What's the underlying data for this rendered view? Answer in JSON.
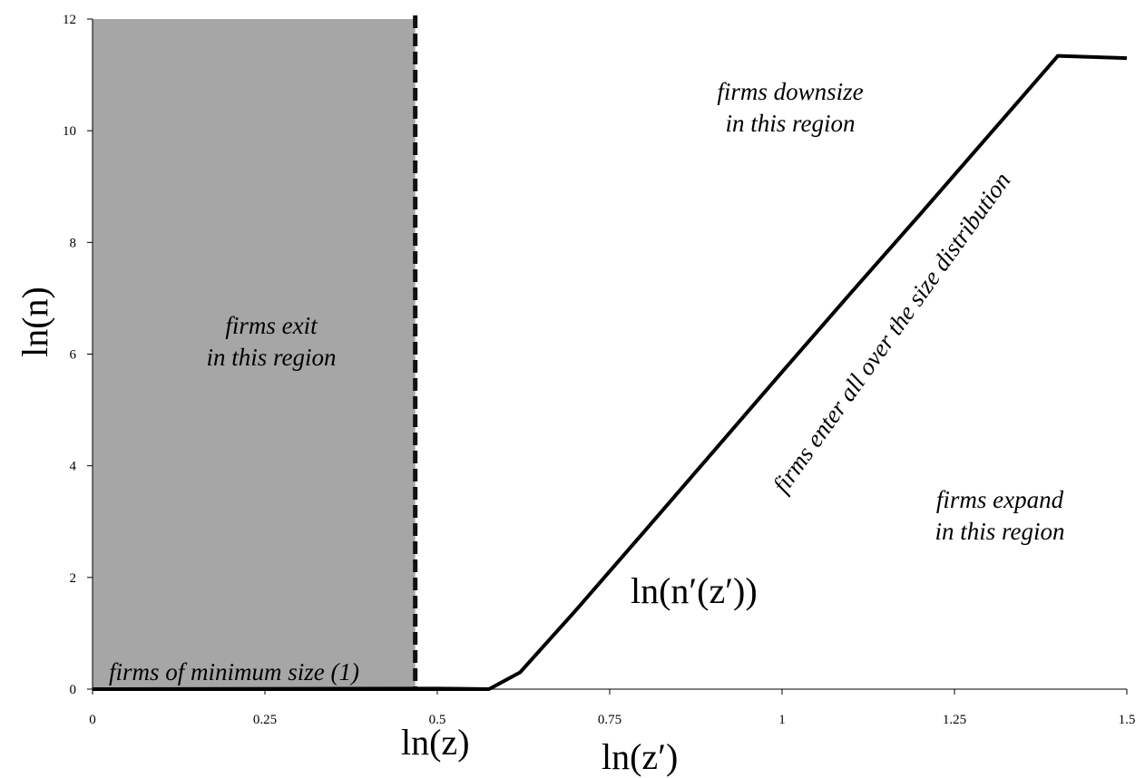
{
  "chart_data": {
    "type": "line",
    "xlabel": "ln(z′)",
    "ylabel": "ln(n)",
    "xlim": [
      0,
      1.5
    ],
    "ylim": [
      0,
      12
    ],
    "x_ticks": [
      "0",
      "0.25",
      "0.5",
      "0.75",
      "1",
      "1.25",
      "1.5"
    ],
    "y_ticks": [
      "0",
      "2",
      "4",
      "6",
      "8",
      "10",
      "12"
    ],
    "grid": false,
    "exit_region": {
      "x_from": 0,
      "x_to": 0.468,
      "fill": "#a6a6a6"
    },
    "threshold": {
      "x": 0.468,
      "label": "ln(z)",
      "style": "dashed"
    },
    "series": [
      {
        "name": "ln(n′(z′))",
        "color": "#000000",
        "points": [
          [
            0,
            0
          ],
          [
            0.5,
            0.01
          ],
          [
            0.575,
            0
          ],
          [
            0.62,
            0.3
          ],
          [
            0.7,
            1.4
          ],
          [
            0.8,
            2.82
          ],
          [
            0.9,
            4.25
          ],
          [
            1.0,
            5.68
          ],
          [
            1.1,
            7.1
          ],
          [
            1.2,
            8.5
          ],
          [
            1.3,
            9.92
          ],
          [
            1.4,
            11.34
          ],
          [
            1.5,
            11.3
          ]
        ]
      }
    ],
    "annotations": {
      "exit": [
        "firms exit",
        "in this region"
      ],
      "downsize": [
        "firms downsize",
        "in this region"
      ],
      "expand": [
        "firms expand",
        "in this region"
      ],
      "enter": "firms enter all over the size distribution",
      "minimum": "firms of minimum size (1)"
    }
  }
}
